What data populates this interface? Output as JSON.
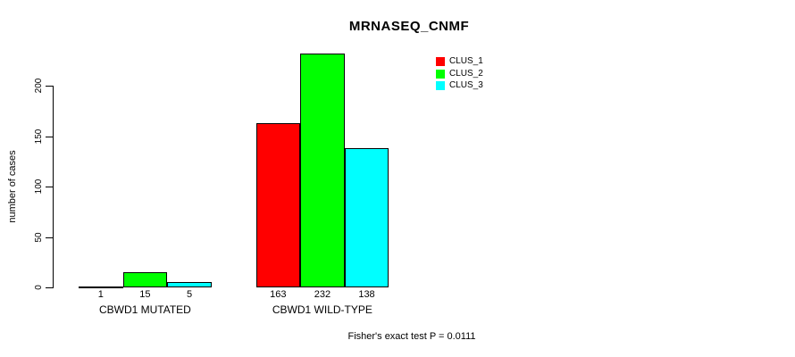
{
  "chart_data": {
    "type": "bar",
    "title": "MRNASEQ_CNMF",
    "ylabel": "number of cases",
    "xlabel": "",
    "categories": [
      "CBWD1 MUTATED",
      "CBWD1 WILD-TYPE"
    ],
    "series": [
      {
        "name": "CLUS_1",
        "color": "#ff0000",
        "values": [
          1,
          163
        ]
      },
      {
        "name": "CLUS_2",
        "color": "#00ff00",
        "values": [
          15,
          232
        ]
      },
      {
        "name": "CLUS_3",
        "color": "#00ffff",
        "values": [
          5,
          138
        ]
      }
    ],
    "bar_value_labels": [
      [
        1,
        163
      ],
      [
        15,
        232
      ],
      [
        5,
        138
      ]
    ],
    "yticks": [
      0,
      50,
      100,
      150,
      200
    ],
    "ylim": [
      0,
      235
    ],
    "grid": false,
    "legend_position": "top-right",
    "annotation": "Fisher's exact test P = 0.0111"
  }
}
